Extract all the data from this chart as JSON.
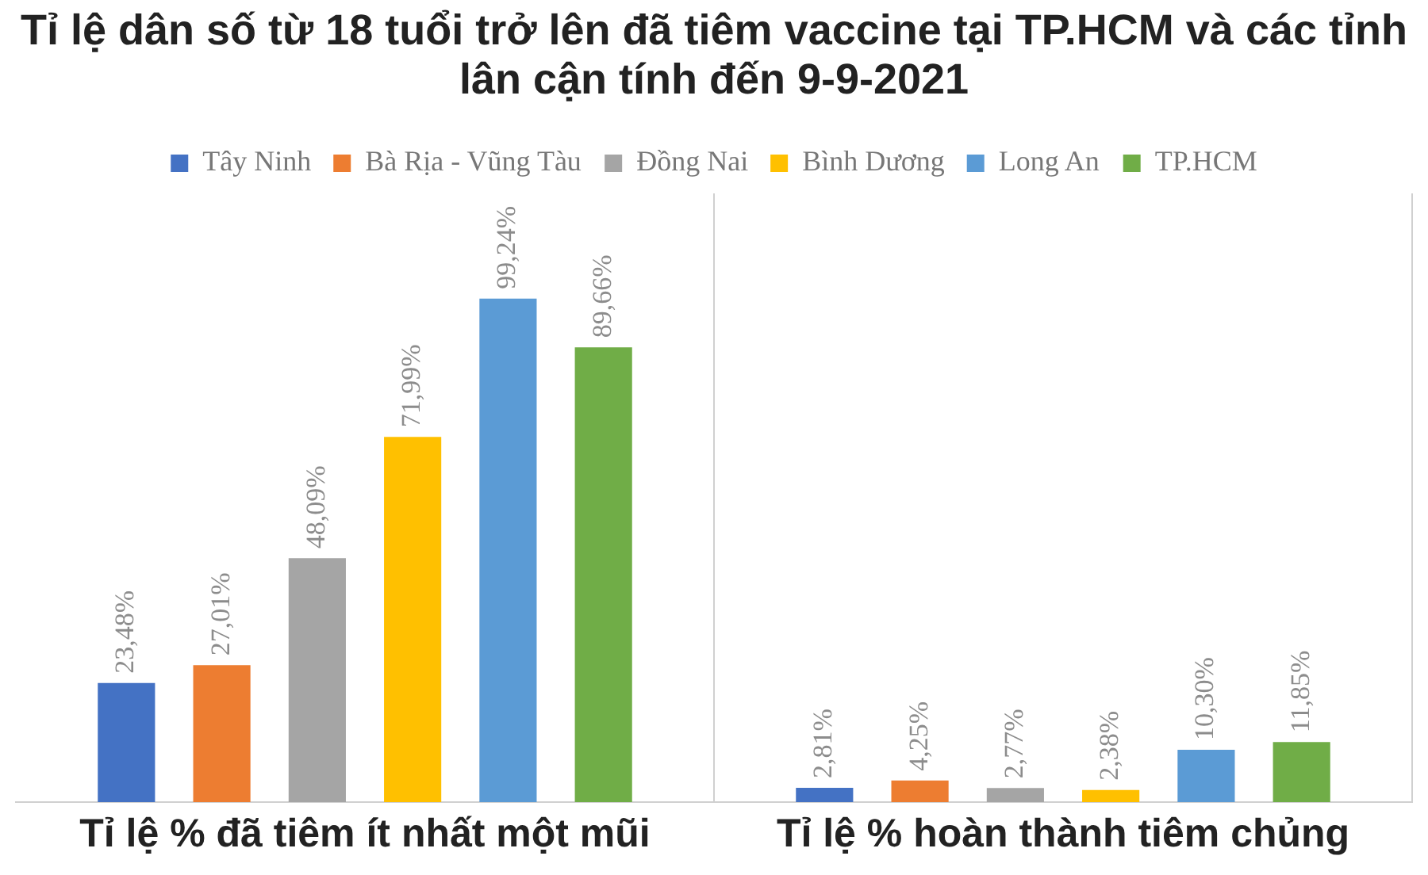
{
  "chart_data": {
    "type": "bar",
    "title": "Tỉ lệ dân số từ 18 tuổi trở lên đã tiêm vaccine tại TP.HCM và các tỉnh lân cận tính đến 9-9-2021",
    "categories": [
      "Tỉ lệ % đã tiêm ít nhất một mũi",
      "Tỉ lệ % hoàn thành tiêm chủng"
    ],
    "series": [
      {
        "name": "Tây Ninh",
        "color": "#4472c4",
        "values": [
          23.48,
          2.81
        ],
        "value_labels": [
          "23,48%",
          "2,81%"
        ]
      },
      {
        "name": "Bà Rịa - Vũng Tàu",
        "color": "#ed7d31",
        "values": [
          27.01,
          4.25
        ],
        "value_labels": [
          "27,01%",
          "4,25%"
        ]
      },
      {
        "name": "Đồng Nai",
        "color": "#a5a5a5",
        "values": [
          48.09,
          2.77
        ],
        "value_labels": [
          "48,09%",
          "2,77%"
        ]
      },
      {
        "name": "Bình Dương",
        "color": "#ffc000",
        "values": [
          71.99,
          2.38
        ],
        "value_labels": [
          "71,99%",
          "2,38%"
        ]
      },
      {
        "name": "Long An",
        "color": "#5b9bd5",
        "values": [
          99.24,
          10.3
        ],
        "value_labels": [
          "99,24%",
          "10,30%"
        ]
      },
      {
        "name": "TP.HCM",
        "color": "#70ad47",
        "values": [
          89.66,
          11.85
        ],
        "value_labels": [
          "89,66%",
          "11,85%"
        ]
      }
    ],
    "legend": "top",
    "grid": "x",
    "tick_labels": "x"
  }
}
